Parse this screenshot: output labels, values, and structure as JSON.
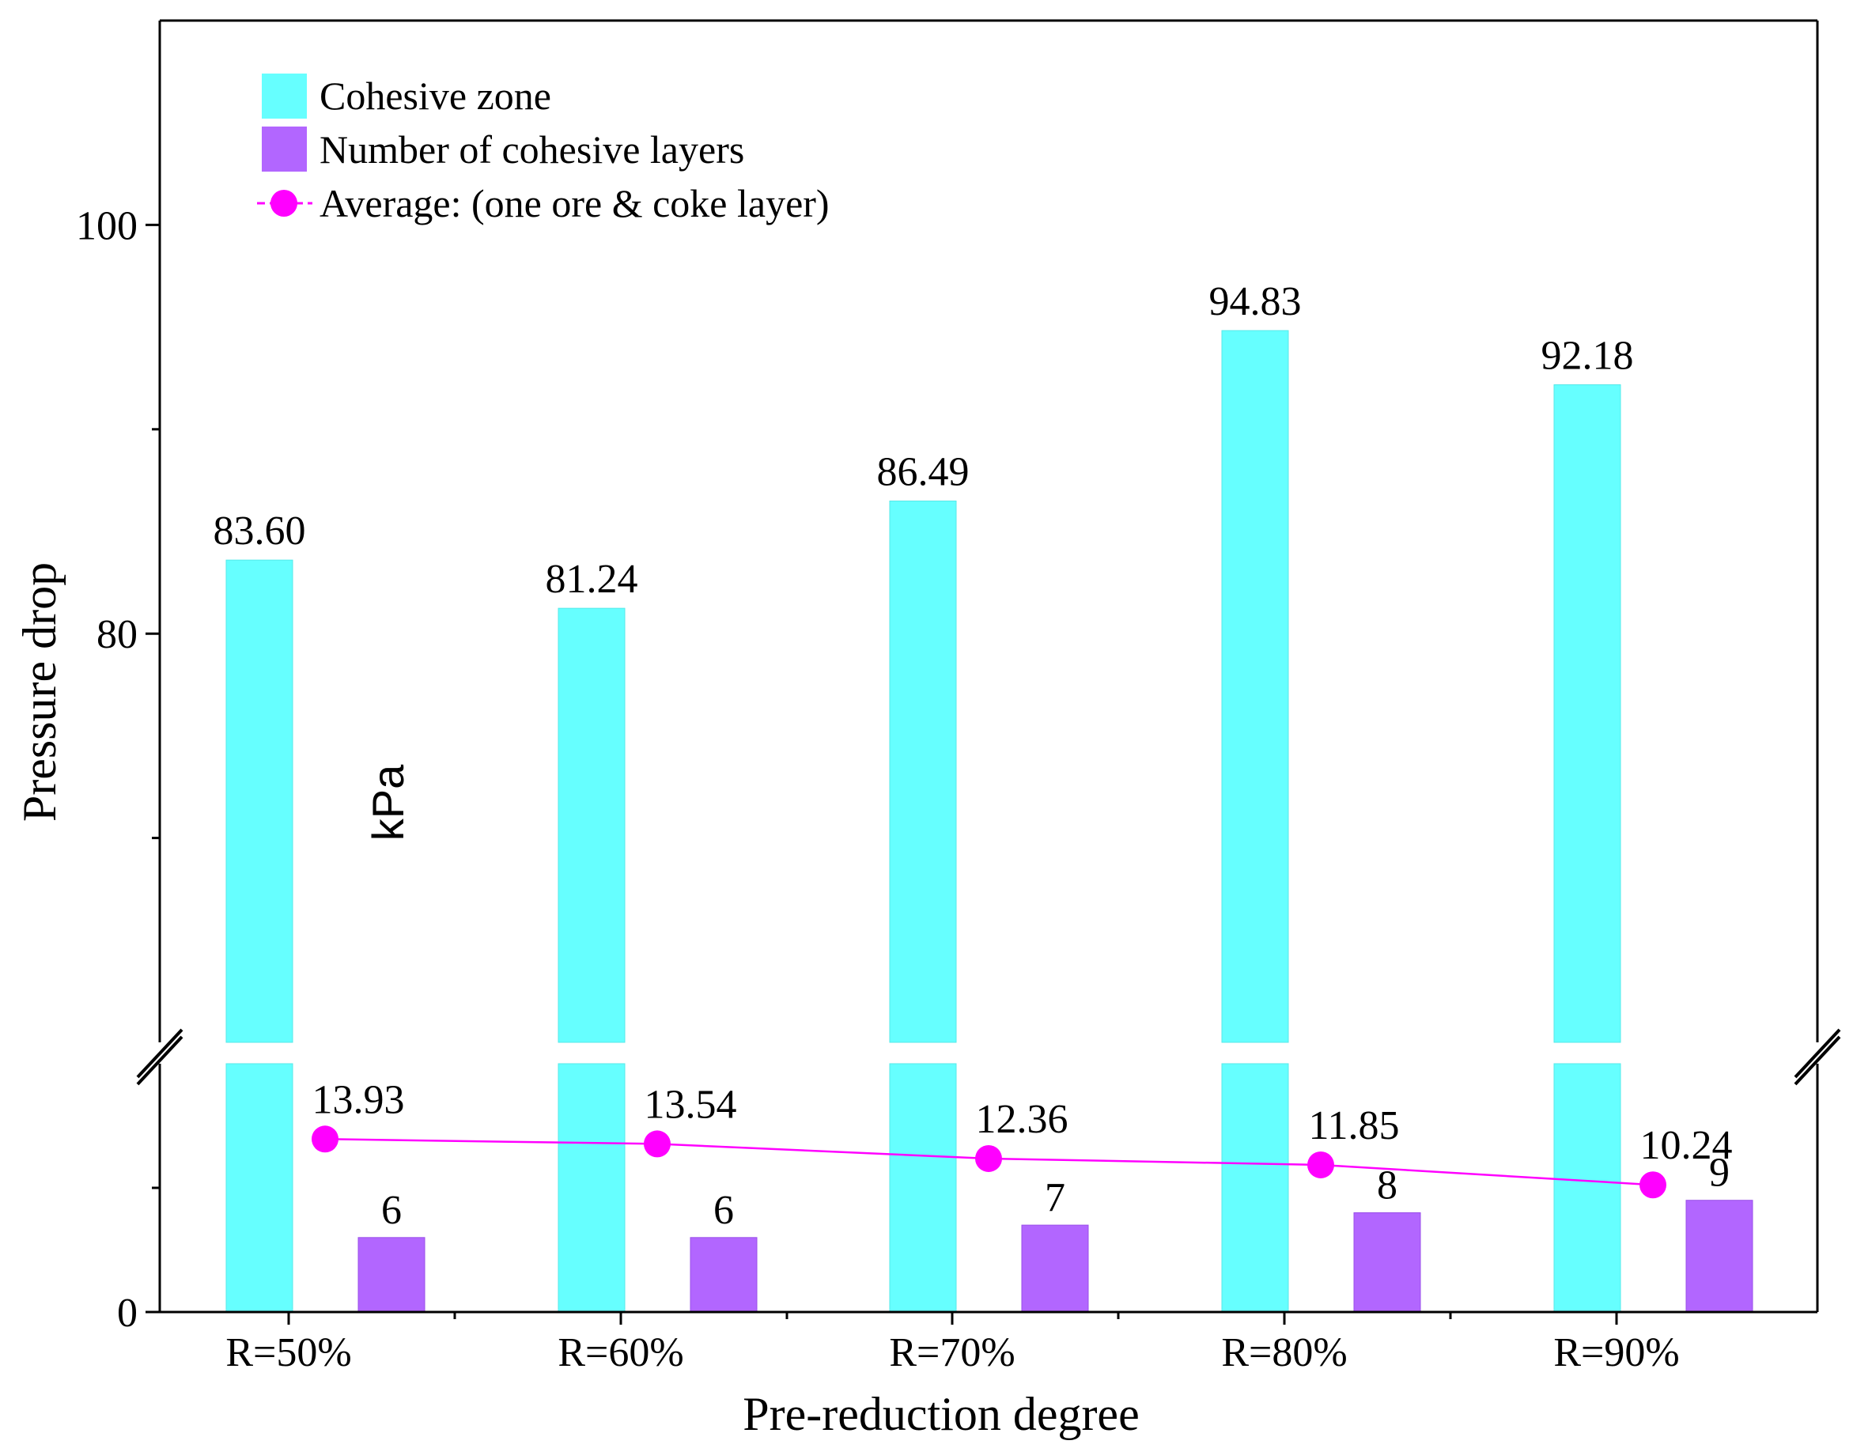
{
  "chart_data": {
    "type": "bar",
    "categories": [
      "R=50%",
      "R=60%",
      "R=70%",
      "R=80%",
      "R=90%"
    ],
    "xlabel": "Pre-reduction degree",
    "ylabel": "Pressure drop",
    "ylabel_unit": "kPa",
    "y_axis_break": true,
    "lower_segment_ylim": [
      0,
      20
    ],
    "upper_segment_ylim": [
      60,
      110
    ],
    "y_ticks_labeled": [
      "0",
      "80",
      "100"
    ],
    "legend_position": "top-left",
    "series": [
      {
        "name": "Cohesive zone",
        "kind": "bar",
        "color": "#66FFFF",
        "values": [
          83.6,
          81.24,
          86.49,
          94.83,
          92.18
        ],
        "labels": [
          "83.60",
          "81.24",
          "86.49",
          "94.83",
          "92.18"
        ]
      },
      {
        "name": "Number of cohesive layers",
        "kind": "bar",
        "color": "#B266FF",
        "values": [
          6,
          6,
          7,
          8,
          9
        ],
        "labels": [
          "6",
          "6",
          "7",
          "8",
          "9"
        ]
      },
      {
        "name": "Average: (one ore & coke layer)",
        "kind": "line",
        "color": "#FF00FF",
        "values": [
          13.93,
          13.54,
          12.36,
          11.85,
          10.24
        ],
        "labels": [
          "13.93",
          "13.54",
          "12.36",
          "11.85",
          "10.24"
        ]
      }
    ]
  }
}
